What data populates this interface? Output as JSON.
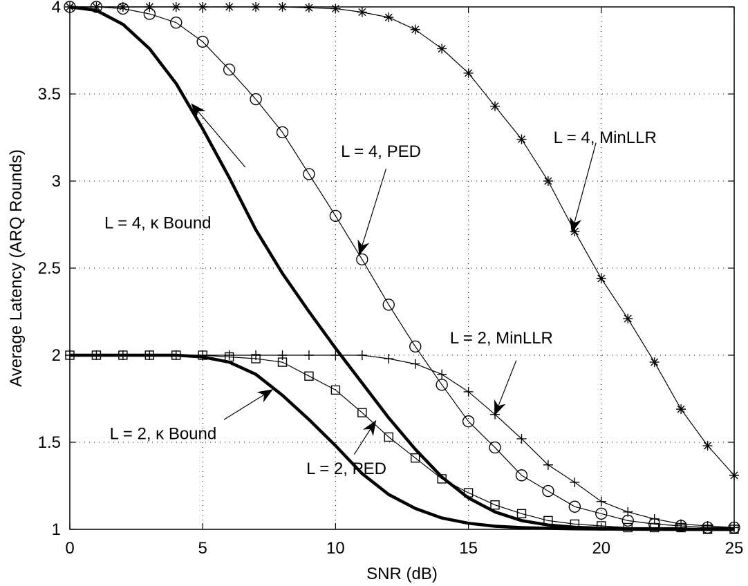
{
  "chart_data": {
    "type": "line",
    "xlabel": "SNR (dB)",
    "ylabel": "Average Latency (ARQ Rounds)",
    "xlim": [
      0,
      25
    ],
    "ylim": [
      1,
      4
    ],
    "xticks": [
      0,
      5,
      10,
      15,
      20,
      25
    ],
    "yticks": [
      1,
      1.5,
      2,
      2.5,
      3,
      3.5,
      4
    ],
    "ytick_labels": [
      "1",
      "1.5",
      "2",
      "2.5",
      "3",
      "3.5",
      "4"
    ],
    "grid": true,
    "series": [
      {
        "name": "L = 4, MinLLR",
        "marker": "asterisk",
        "line": "thin",
        "x": [
          0,
          1,
          2,
          3,
          4,
          5,
          6,
          7,
          8,
          9,
          10,
          11,
          12,
          13,
          14,
          15,
          16,
          17,
          18,
          19,
          20,
          21,
          22,
          23,
          24,
          25
        ],
        "y": [
          4,
          4,
          4,
          4,
          4,
          4,
          4,
          4,
          4,
          3.995,
          3.99,
          3.97,
          3.94,
          3.87,
          3.76,
          3.62,
          3.43,
          3.24,
          3.0,
          2.71,
          2.44,
          2.21,
          1.96,
          1.69,
          1.48,
          1.31
        ]
      },
      {
        "name": "L = 4, PED",
        "marker": "circle",
        "line": "thin",
        "x": [
          0,
          1,
          2,
          3,
          4,
          5,
          6,
          7,
          8,
          9,
          10,
          11,
          12,
          13,
          14,
          15,
          16,
          17,
          18,
          19,
          20,
          21,
          22,
          23,
          24,
          25
        ],
        "y": [
          4,
          4,
          3.99,
          3.96,
          3.91,
          3.8,
          3.64,
          3.47,
          3.28,
          3.04,
          2.8,
          2.55,
          2.29,
          2.05,
          1.83,
          1.62,
          1.47,
          1.31,
          1.22,
          1.13,
          1.09,
          1.05,
          1.03,
          1.02,
          1.01,
          1.01
        ]
      },
      {
        "name": "L = 4, κ Bound",
        "marker": "none",
        "line": "thick",
        "x": [
          0,
          1,
          2,
          3,
          4,
          5,
          6,
          7,
          8,
          9,
          10,
          11,
          12,
          13,
          14,
          15,
          16,
          17,
          18,
          19,
          20,
          21,
          22,
          23,
          24,
          25
        ],
        "y": [
          4,
          3.98,
          3.9,
          3.76,
          3.56,
          3.3,
          3.02,
          2.72,
          2.47,
          2.25,
          2.04,
          1.84,
          1.64,
          1.46,
          1.3,
          1.18,
          1.1,
          1.05,
          1.025,
          1.012,
          1.006,
          1.003,
          1.001,
          1.0,
          1.0,
          1.0
        ]
      },
      {
        "name": "L = 2, MinLLR",
        "marker": "plus",
        "line": "thin",
        "x": [
          0,
          1,
          2,
          3,
          4,
          5,
          6,
          7,
          8,
          9,
          10,
          11,
          12,
          13,
          14,
          15,
          16,
          17,
          18,
          19,
          20,
          21,
          22,
          23,
          24,
          25
        ],
        "y": [
          2,
          2,
          2,
          2,
          2,
          2,
          2,
          2,
          2,
          2,
          2,
          2,
          1.98,
          1.95,
          1.89,
          1.79,
          1.66,
          1.52,
          1.37,
          1.27,
          1.16,
          1.1,
          1.06,
          1.03,
          1.02,
          1.01
        ]
      },
      {
        "name": "L = 2, PED",
        "marker": "square",
        "line": "thin",
        "x": [
          0,
          1,
          2,
          3,
          4,
          5,
          6,
          7,
          8,
          9,
          10,
          11,
          12,
          13,
          14,
          15,
          16,
          17,
          18,
          19,
          20,
          21,
          22,
          23,
          24,
          25
        ],
        "y": [
          2,
          2,
          2,
          2,
          2,
          2,
          1.99,
          1.98,
          1.96,
          1.88,
          1.8,
          1.67,
          1.53,
          1.41,
          1.29,
          1.21,
          1.14,
          1.09,
          1.05,
          1.03,
          1.02,
          1.01,
          1.01,
          1.01,
          1.0,
          1.0
        ]
      },
      {
        "name": "L = 2, κ Bound",
        "marker": "none",
        "line": "thick",
        "x": [
          0,
          1,
          2,
          3,
          4,
          5,
          6,
          7,
          8,
          9,
          10,
          11,
          12,
          13,
          14,
          15,
          16,
          17,
          18,
          19,
          20,
          21,
          22,
          23,
          24,
          25
        ],
        "y": [
          2,
          2,
          2,
          2,
          2,
          1.99,
          1.96,
          1.89,
          1.77,
          1.63,
          1.48,
          1.32,
          1.2,
          1.12,
          1.065,
          1.035,
          1.018,
          1.01,
          1.006,
          1.003,
          1.002,
          1.001,
          1.0,
          1.0,
          1.0,
          1.0
        ]
      }
    ],
    "annotations": [
      {
        "text": "L = 4, MinLLR",
        "text_x": 18.2,
        "text_y": 3.25,
        "arrow_from": [
          19.8,
          3.22
        ],
        "arrow_to": [
          18.9,
          2.71
        ]
      },
      {
        "text": "L = 4, PED",
        "text_x": 10.2,
        "text_y": 3.17,
        "arrow_from": [
          11.9,
          3.07
        ],
        "arrow_to": [
          10.9,
          2.58
        ]
      },
      {
        "text": "L = 4, κ Bound",
        "text_x": 1.3,
        "text_y": 2.76,
        "arrow_from": [
          6.6,
          3.08
        ],
        "arrow_to": [
          4.6,
          3.44
        ]
      },
      {
        "text": "L = 2, MinLLR",
        "text_x": 14.3,
        "text_y": 2.1,
        "arrow_from": [
          16.8,
          1.97
        ],
        "arrow_to": [
          16.0,
          1.66
        ]
      },
      {
        "text": "L = 2, κ Bound",
        "text_x": 1.5,
        "text_y": 1.55,
        "arrow_from": [
          5.8,
          1.63
        ],
        "arrow_to": [
          7.6,
          1.8
        ]
      },
      {
        "text": "L = 2, PED",
        "text_x": 8.9,
        "text_y": 1.35,
        "arrow_from": [
          10.7,
          1.43
        ],
        "arrow_to": [
          11.5,
          1.62
        ]
      }
    ]
  }
}
